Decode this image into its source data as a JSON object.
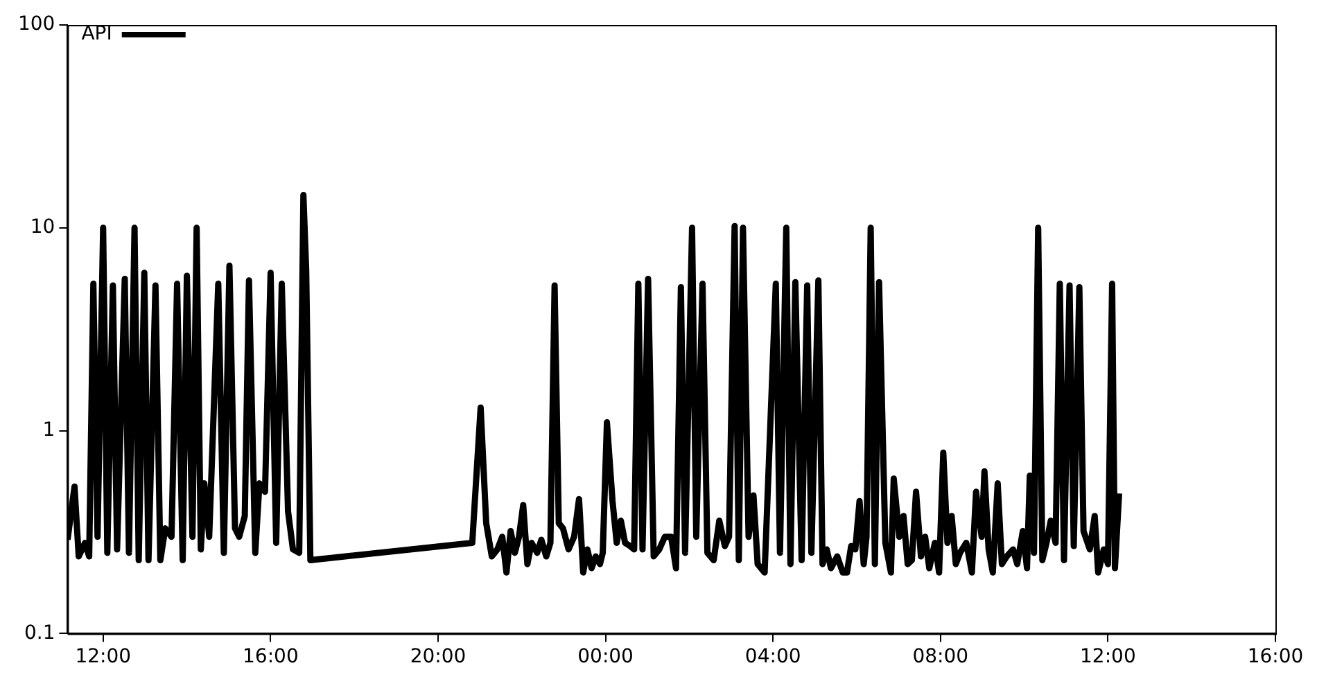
{
  "chart_data": {
    "type": "line",
    "log": "y",
    "grid": false,
    "legend": "top left",
    "marker": "none",
    "line_style": "solid",
    "xlim": [
      "2000-01-01T11:09",
      "2000-01-02T16:00"
    ],
    "xticks": [
      {
        "value": "2000-01-01T12:00",
        "label": "12:00"
      },
      {
        "value": "2000-01-01T16:00",
        "label": "16:00"
      },
      {
        "value": "2000-01-01T20:00",
        "label": "20:00"
      },
      {
        "value": "2000-01-02T00:00",
        "label": "00:00"
      },
      {
        "value": "2000-01-02T04:00",
        "label": "04:00"
      },
      {
        "value": "2000-01-02T08:00",
        "label": "08:00"
      },
      {
        "value": "2000-01-02T12:00",
        "label": "12:00"
      },
      {
        "value": "2000-01-02T16:00",
        "label": "16:00"
      }
    ],
    "ylim": [
      0.1,
      100
    ],
    "yticks": [
      0.1,
      1,
      10,
      100
    ],
    "series": [
      {
        "name": "API",
        "color": "#000000",
        "x": [
          "2000-01-01T11:09",
          "2000-01-01T11:19",
          "2000-01-01T11:25",
          "2000-01-01T11:34",
          "2000-01-01T11:40",
          "2000-01-01T11:46",
          "2000-01-01T11:52",
          "2000-01-01T12:00",
          "2000-01-01T12:06",
          "2000-01-01T12:14",
          "2000-01-01T12:20",
          "2000-01-01T12:31",
          "2000-01-01T12:37",
          "2000-01-01T12:45",
          "2000-01-01T12:51",
          "2000-01-01T12:59",
          "2000-01-01T13:05",
          "2000-01-01T13:15",
          "2000-01-01T13:22",
          "2000-01-01T13:29",
          "2000-01-01T13:38",
          "2000-01-01T13:46",
          "2000-01-01T13:54",
          "2000-01-01T14:00",
          "2000-01-01T14:08",
          "2000-01-01T14:14",
          "2000-01-01T14:20",
          "2000-01-01T14:25",
          "2000-01-01T14:32",
          "2000-01-01T14:45",
          "2000-01-01T14:53",
          "2000-01-01T15:01",
          "2000-01-01T15:09",
          "2000-01-01T15:15",
          "2000-01-01T15:23",
          "2000-01-01T15:29",
          "2000-01-01T15:38",
          "2000-01-01T15:44",
          "2000-01-01T15:52",
          "2000-01-01T16:00",
          "2000-01-01T16:08",
          "2000-01-01T16:16",
          "2000-01-01T16:25",
          "2000-01-01T16:32",
          "2000-01-01T16:41",
          "2000-01-01T16:47",
          "2000-01-01T16:51",
          "2000-01-01T16:57",
          "2000-01-01T20:49",
          "2000-01-01T21:01",
          "2000-01-01T21:09",
          "2000-01-01T21:17",
          "2000-01-01T21:25",
          "2000-01-01T21:32",
          "2000-01-01T21:38",
          "2000-01-01T21:44",
          "2000-01-01T21:50",
          "2000-01-01T21:56",
          "2000-01-01T22:02",
          "2000-01-01T22:08",
          "2000-01-01T22:14",
          "2000-01-01T22:22",
          "2000-01-01T22:28",
          "2000-01-01T22:35",
          "2000-01-01T22:41",
          "2000-01-01T22:47",
          "2000-01-01T22:53",
          "2000-01-01T22:59",
          "2000-01-01T23:07",
          "2000-01-01T23:15",
          "2000-01-01T23:22",
          "2000-01-01T23:28",
          "2000-01-01T23:34",
          "2000-01-01T23:40",
          "2000-01-01T23:46",
          "2000-01-01T23:52",
          "2000-01-01T23:56",
          "2000-01-02T00:02",
          "2000-01-02T00:10",
          "2000-01-02T00:16",
          "2000-01-02T00:22",
          "2000-01-02T00:28",
          "2000-01-02T00:35",
          "2000-01-02T00:41",
          "2000-01-02T00:47",
          "2000-01-02T00:53",
          "2000-01-02T01:01",
          "2000-01-02T01:09",
          "2000-01-02T01:17",
          "2000-01-02T01:25",
          "2000-01-02T01:34",
          "2000-01-02T01:41",
          "2000-01-02T01:48",
          "2000-01-02T01:54",
          "2000-01-02T02:04",
          "2000-01-02T02:10",
          "2000-01-02T02:19",
          "2000-01-02T02:26",
          "2000-01-02T02:35",
          "2000-01-02T02:43",
          "2000-01-02T02:51",
          "2000-01-02T02:57",
          "2000-01-02T03:05",
          "2000-01-02T03:11",
          "2000-01-02T03:17",
          "2000-01-02T03:25",
          "2000-01-02T03:32",
          "2000-01-02T03:38",
          "2000-01-02T03:48",
          "2000-01-02T04:04",
          "2000-01-02T04:10",
          "2000-01-02T04:19",
          "2000-01-02T04:25",
          "2000-01-02T04:32",
          "2000-01-02T04:41",
          "2000-01-02T04:49",
          "2000-01-02T04:55",
          "2000-01-02T05:05",
          "2000-01-02T05:11",
          "2000-01-02T05:17",
          "2000-01-02T05:23",
          "2000-01-02T05:32",
          "2000-01-02T05:40",
          "2000-01-02T05:46",
          "2000-01-02T05:52",
          "2000-01-02T05:58",
          "2000-01-02T06:04",
          "2000-01-02T06:10",
          "2000-01-02T06:14",
          "2000-01-02T06:20",
          "2000-01-02T06:26",
          "2000-01-02T06:32",
          "2000-01-02T06:41",
          "2000-01-02T06:49",
          "2000-01-02T06:53",
          "2000-01-02T07:01",
          "2000-01-02T07:07",
          "2000-01-02T07:13",
          "2000-01-02T07:19",
          "2000-01-02T07:25",
          "2000-01-02T07:32",
          "2000-01-02T07:38",
          "2000-01-02T07:44",
          "2000-01-02T07:52",
          "2000-01-02T07:58",
          "2000-01-02T08:04",
          "2000-01-02T08:10",
          "2000-01-02T08:16",
          "2000-01-02T08:22",
          "2000-01-02T08:28",
          "2000-01-02T08:37",
          "2000-01-02T08:45",
          "2000-01-02T08:51",
          "2000-01-02T08:59",
          "2000-01-02T09:03",
          "2000-01-02T09:09",
          "2000-01-02T09:15",
          "2000-01-02T09:22",
          "2000-01-02T09:28",
          "2000-01-02T09:35",
          "2000-01-02T09:44",
          "2000-01-02T09:50",
          "2000-01-02T09:58",
          "2000-01-02T10:04",
          "2000-01-02T10:08",
          "2000-01-02T10:14",
          "2000-01-02T10:20",
          "2000-01-02T10:26",
          "2000-01-02T10:32",
          "2000-01-02T10:38",
          "2000-01-02T10:45",
          "2000-01-02T10:51",
          "2000-01-02T10:57",
          "2000-01-02T11:05",
          "2000-01-02T11:11",
          "2000-01-02T11:19",
          "2000-01-02T11:25",
          "2000-01-02T11:34",
          "2000-01-02T11:41",
          "2000-01-02T11:46",
          "2000-01-02T11:54",
          "2000-01-02T12:00",
          "2000-01-02T12:06",
          "2000-01-02T12:10",
          "2000-01-02T12:16"
        ],
        "values": [
          0.29,
          0.53,
          0.24,
          0.28,
          0.24,
          5.3,
          0.3,
          10,
          0.25,
          5.2,
          0.26,
          5.6,
          0.25,
          10,
          0.23,
          6,
          0.23,
          5.2,
          0.23,
          0.33,
          0.3,
          5.3,
          0.23,
          5.8,
          0.3,
          10,
          0.26,
          0.55,
          0.3,
          5.3,
          0.25,
          6.5,
          0.33,
          0.3,
          0.38,
          5.5,
          0.25,
          0.55,
          0.5,
          6,
          0.28,
          5.3,
          0.4,
          0.26,
          0.25,
          14.5,
          6.2,
          0.23,
          0.28,
          1.3,
          0.35,
          0.24,
          0.26,
          0.3,
          0.2,
          0.32,
          0.25,
          0.3,
          0.43,
          0.22,
          0.28,
          0.25,
          0.29,
          0.24,
          0.28,
          5.2,
          0.35,
          0.33,
          0.26,
          0.3,
          0.46,
          0.2,
          0.26,
          0.21,
          0.24,
          0.22,
          0.25,
          1.1,
          0.45,
          0.28,
          0.36,
          0.28,
          0.27,
          0.26,
          5.3,
          0.26,
          5.6,
          0.24,
          0.26,
          0.3,
          0.3,
          0.21,
          5.1,
          0.25,
          10,
          0.3,
          5.3,
          0.25,
          0.23,
          0.36,
          0.27,
          0.3,
          10.2,
          0.23,
          10,
          0.3,
          0.48,
          0.22,
          0.2,
          5.3,
          0.25,
          10,
          0.22,
          5.4,
          0.23,
          5.2,
          0.25,
          5.5,
          0.22,
          0.26,
          0.21,
          0.24,
          0.2,
          0.2,
          0.27,
          0.26,
          0.45,
          0.22,
          0.3,
          10,
          0.22,
          5.4,
          0.28,
          0.2,
          0.58,
          0.3,
          0.38,
          0.22,
          0.23,
          0.5,
          0.24,
          0.3,
          0.21,
          0.28,
          0.2,
          0.78,
          0.28,
          0.38,
          0.22,
          0.25,
          0.28,
          0.2,
          0.5,
          0.3,
          0.63,
          0.26,
          0.2,
          0.55,
          0.22,
          0.24,
          0.26,
          0.22,
          0.32,
          0.21,
          0.6,
          0.25,
          10,
          0.23,
          0.28,
          0.36,
          0.28,
          5.3,
          0.23,
          5.2,
          0.27,
          5.1,
          0.32,
          0.26,
          0.38,
          0.2,
          0.26,
          0.22,
          5.3,
          0.21,
          0.49
        ]
      }
    ]
  }
}
